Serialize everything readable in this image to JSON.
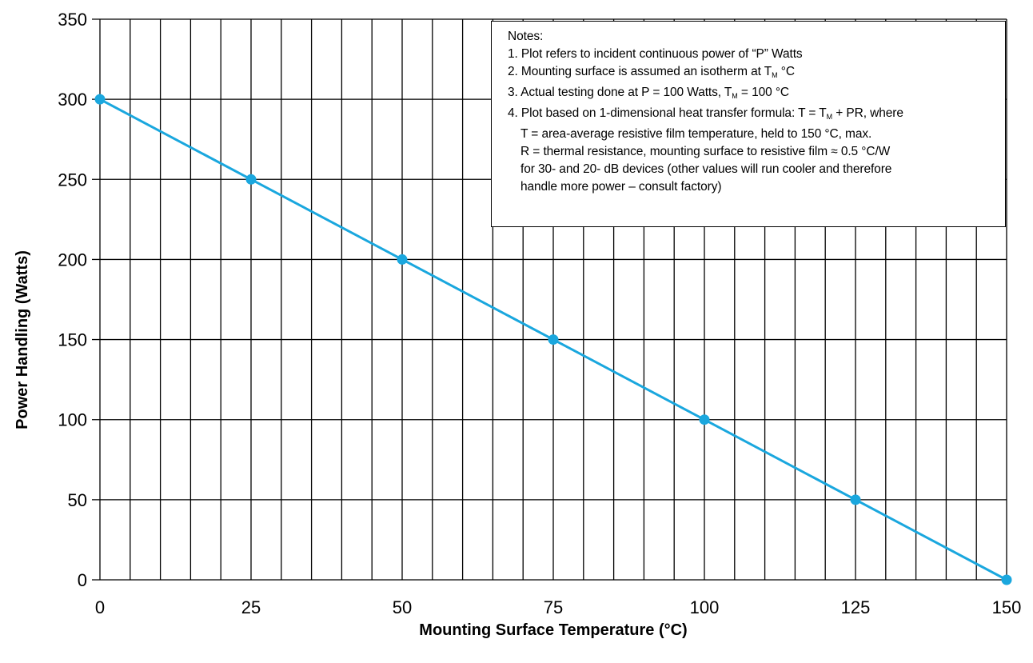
{
  "chart_data": {
    "type": "line",
    "xlabel": "Mounting Surface Temperature (°C)",
    "ylabel": "Power Handling (Watts)",
    "xlim": [
      0,
      150
    ],
    "ylim": [
      0,
      350
    ],
    "x_ticks": [
      "0",
      "25",
      "50",
      "75",
      "100",
      "125",
      "150"
    ],
    "y_ticks": [
      "0",
      "50",
      "100",
      "150",
      "200",
      "250",
      "300",
      "350"
    ],
    "grid": true,
    "grid_x_step": 5,
    "grid_y_step": 50,
    "series": [
      {
        "color": "#1aa7de",
        "x": [
          0,
          25,
          50,
          75,
          100,
          125,
          150
        ],
        "y": [
          300,
          250,
          200,
          150,
          100,
          50,
          0
        ]
      }
    ],
    "annotation": {
      "title": "Notes:",
      "n1": "1. Plot refers to incident continuous power of “P” Watts",
      "n2a": "2. Mounting surface is assumed an isotherm at T",
      "n2sub": "M",
      "n2b": " °C",
      "n3a": "3. Actual testing done at P = 100 Watts, T",
      "n3sub": "M",
      "n3b": " = 100 °C",
      "n4a": "4. Plot based on 1-dimensional heat transfer formula: T = T",
      "n4sub": "M",
      "n4b": " + PR, where",
      "n4c": "T = area-average resistive film temperature, held to 150 °C, max.",
      "n4d": "R = thermal resistance, mounting surface to resistive film ≈ 0.5 °C/W",
      "n4e": "for 30- and 20- dB devices (other values will run cooler and therefore",
      "n4f": "handle more power – consult factory)"
    }
  }
}
